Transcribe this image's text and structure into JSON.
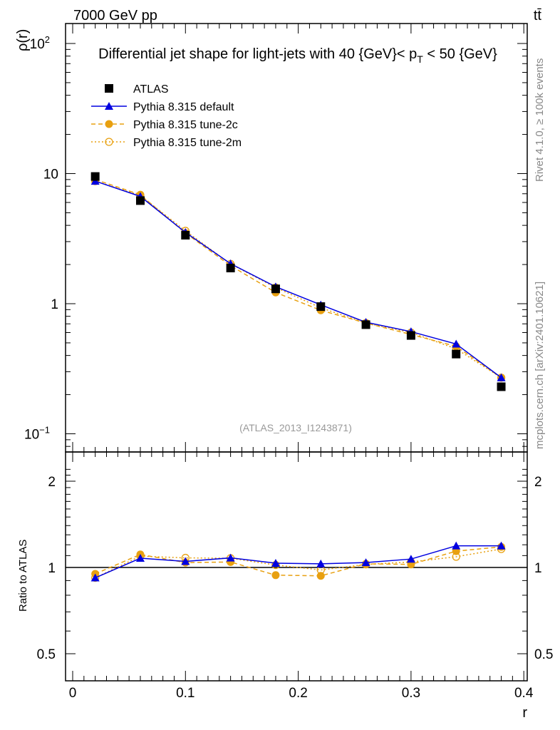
{
  "header": {
    "energy_label": "7000 GeV pp",
    "process_label": "tt̄"
  },
  "side_labels": {
    "rivet": "Rivet 4.1.0, ≥ 100k events",
    "mcplots": "mcplots.cern.ch [arXiv:2401.10621]"
  },
  "analysis_id": "(ATLAS_2013_I1243871)",
  "colors": {
    "atlas": "#000000",
    "default": "#0000e0",
    "tune2c": "#e8a010",
    "tune2m": "#e8a010"
  },
  "chart_data": [
    {
      "type": "line",
      "title": "Differential jet shape for light-jets with 40 {GeV}< p_T < 50 {GeV}",
      "title_parts": {
        "main": "Differential jet shape for light-jets with 40 {GeV}< p",
        "sub": "T",
        "tail": " < 50 {GeV}"
      },
      "ylabel": "ρ(r)",
      "yscale": "log",
      "ylim": [
        0.08,
        130
      ],
      "yticks": [
        {
          "v": 100,
          "base": "10",
          "exp": "2"
        },
        {
          "v": 10,
          "base": "10",
          "exp": ""
        },
        {
          "v": 1,
          "base": "1",
          "exp": ""
        },
        {
          "v": 0.1,
          "base": "10",
          "exp": "−1"
        }
      ],
      "x": [
        0.02,
        0.06,
        0.1,
        0.14,
        0.18,
        0.22,
        0.26,
        0.3,
        0.34,
        0.38
      ],
      "legend": {
        "placement": "top-left",
        "entries": [
          "ATLAS",
          "Pythia 8.315 default",
          "Pythia 8.315 tune-2c",
          "Pythia 8.315 tune-2m"
        ]
      },
      "series": [
        {
          "name": "ATLAS",
          "values": [
            9.5,
            6.2,
            3.36,
            1.88,
            1.3,
            0.95,
            0.69,
            0.57,
            0.41,
            0.23
          ]
        },
        {
          "name": "Pythia 8.315 default",
          "values": [
            8.75,
            6.68,
            3.53,
            2.03,
            1.35,
            0.98,
            0.72,
            0.61,
            0.49,
            0.27
          ]
        },
        {
          "name": "Pythia 8.315 tune-2c",
          "values": [
            9.0,
            6.88,
            3.49,
            1.96,
            1.22,
            0.89,
            0.71,
            0.58,
            0.47,
            0.27
          ]
        },
        {
          "name": "Pythia 8.315 tune-2m",
          "values": [
            8.75,
            6.79,
            3.63,
            2.02,
            1.33,
            0.93,
            0.71,
            0.6,
            0.45,
            0.27
          ]
        }
      ]
    },
    {
      "type": "line",
      "ylabel": "Ratio to ATLAS",
      "xlabel": "r",
      "yscale": "log",
      "ylim": [
        0.4,
        2.3
      ],
      "yticks": [
        "2",
        "1",
        "0.5"
      ],
      "ytick_values": [
        2,
        1,
        0.5
      ],
      "xlim": [
        -0.0065,
        0.4
      ],
      "xticks": [
        "0",
        "0.1",
        "0.2",
        "0.3",
        "0.4"
      ],
      "xtick_values": [
        0,
        0.1,
        0.2,
        0.3,
        0.4
      ],
      "x": [
        0.02,
        0.06,
        0.1,
        0.14,
        0.18,
        0.22,
        0.26,
        0.3,
        0.34,
        0.38
      ],
      "series": [
        {
          "name": "Pythia 8.315 default",
          "values": [
            0.92,
            1.077,
            1.05,
            1.08,
            1.035,
            1.03,
            1.04,
            1.07,
            1.19,
            1.19
          ]
        },
        {
          "name": "Pythia 8.315 tune-2c",
          "values": [
            0.95,
            1.11,
            1.04,
            1.045,
            0.94,
            0.935,
            1.03,
            1.025,
            1.14,
            1.18
          ]
        },
        {
          "name": "Pythia 8.315 tune-2m",
          "values": [
            0.92,
            1.095,
            1.08,
            1.077,
            1.02,
            0.98,
            1.025,
            1.045,
            1.09,
            1.16
          ]
        }
      ]
    }
  ]
}
